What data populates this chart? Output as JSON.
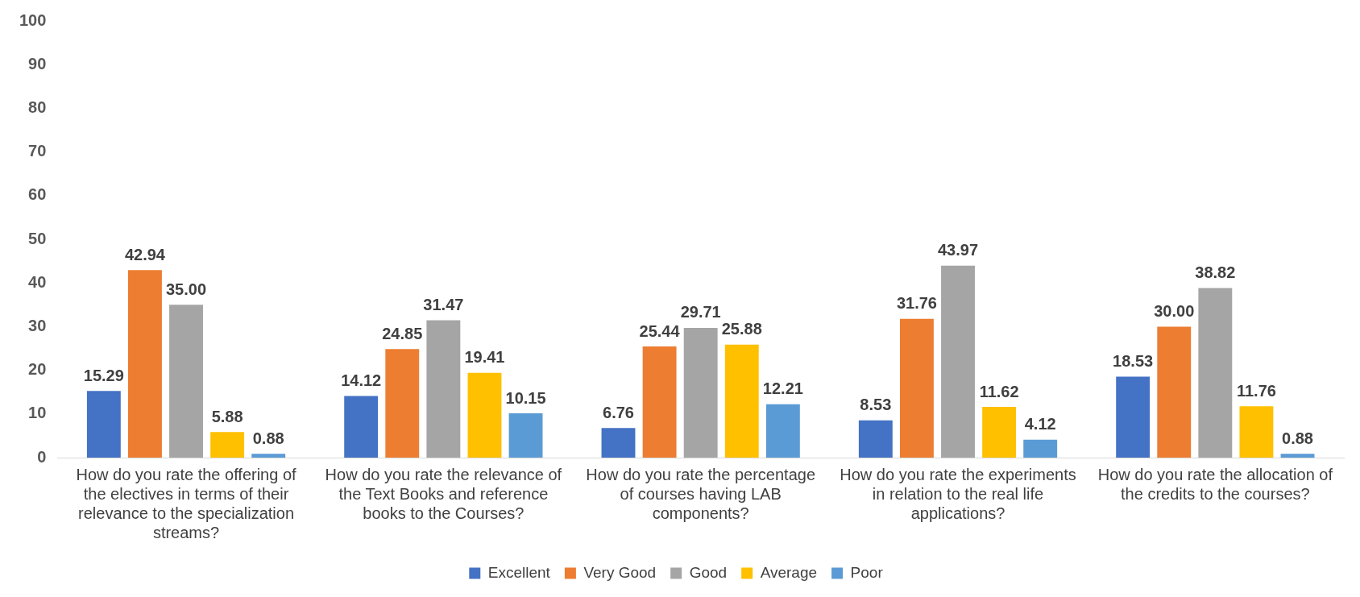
{
  "chart_data": {
    "type": "bar",
    "categories": [
      "How do you rate the offering of the electives in terms of their relevance to the specialization streams?",
      "How do you rate the relevance of the Text Books and reference books to the Courses?",
      "How do you rate the percentage of courses having LAB components?",
      "How do you rate the experiments in relation to the real life applications?",
      "How do you rate the allocation of the credits to the courses?"
    ],
    "series": [
      {
        "name": "Excellent",
        "color": "#4472c4",
        "values": [
          15.29,
          14.12,
          6.76,
          8.53,
          18.53
        ],
        "value_labels": [
          "15.29",
          "14.12",
          "6.76",
          "8.53",
          "18.53"
        ]
      },
      {
        "name": "Very Good",
        "color": "#ed7d31",
        "values": [
          42.94,
          24.85,
          25.44,
          31.76,
          30.0
        ],
        "value_labels": [
          "42.94",
          "24.85",
          "25.44",
          "31.76",
          "30.00"
        ]
      },
      {
        "name": "Good",
        "color": "#a5a5a5",
        "values": [
          35.0,
          31.47,
          29.71,
          43.97,
          38.82
        ],
        "value_labels": [
          "35.00",
          "31.47",
          "29.71",
          "43.97",
          "38.82"
        ]
      },
      {
        "name": "Average",
        "color": "#ffc000",
        "values": [
          5.88,
          19.41,
          25.88,
          11.62,
          11.76
        ],
        "value_labels": [
          "5.88",
          "19.41",
          "25.88",
          "11.62",
          "11.76"
        ]
      },
      {
        "name": "Poor",
        "color": "#5b9bd5",
        "values": [
          0.88,
          10.15,
          12.21,
          4.12,
          0.88
        ],
        "value_labels": [
          "0.88",
          "10.15",
          "12.21",
          "4.12",
          "0.88"
        ]
      }
    ],
    "ylim": [
      0,
      100
    ],
    "yticks": [
      0,
      10,
      20,
      30,
      40,
      50,
      60,
      70,
      80,
      90,
      100
    ],
    "grid": false,
    "legend": "bottom"
  }
}
